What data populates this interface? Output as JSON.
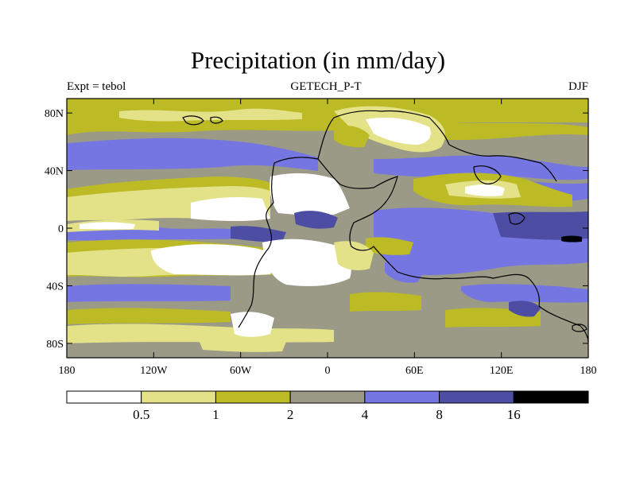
{
  "title": "Precipitation (in mm/day)",
  "subtitle_left": "Expt = tebol",
  "subtitle_center": "GETECH_P-T",
  "subtitle_right": "DJF",
  "axes": {
    "x_ticks": [
      {
        "value": -180,
        "label": "180"
      },
      {
        "value": -120,
        "label": "120W"
      },
      {
        "value": -60,
        "label": "60W"
      },
      {
        "value": 0,
        "label": "0"
      },
      {
        "value": 60,
        "label": "60E"
      },
      {
        "value": 120,
        "label": "120E"
      },
      {
        "value": 180,
        "label": "180"
      }
    ],
    "y_ticks": [
      {
        "value": 80,
        "label": "80N"
      },
      {
        "value": 40,
        "label": "40N"
      },
      {
        "value": 0,
        "label": "0"
      },
      {
        "value": -40,
        "label": "40S"
      },
      {
        "value": -80,
        "label": "80S"
      }
    ],
    "lon_range": [
      -180,
      180
    ],
    "lat_range": [
      -90,
      90
    ]
  },
  "colorbar": {
    "colors": [
      "#ffffff",
      "#e3e288",
      "#bcba25",
      "#9a9a87",
      "#7676e2",
      "#4d4da4",
      "#000000"
    ],
    "labels": [
      "0.5",
      "1",
      "2",
      "4",
      "8",
      "16"
    ]
  }
}
